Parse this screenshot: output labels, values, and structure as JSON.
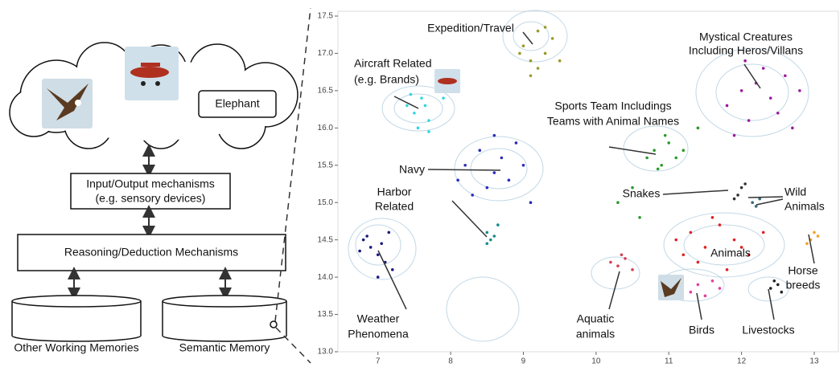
{
  "diagram": {
    "cloud_item": "Elephant",
    "io": [
      "Input/Output mechanisms",
      "(e.g. sensory devices)"
    ],
    "reasoning": "Reasoning/Deduction Mechanisms",
    "memories": [
      "Other Working Memories",
      "Semantic Memory"
    ]
  },
  "chart_data": {
    "type": "scatter",
    "xlim": [
      6.45,
      13.31
    ],
    "ylim": [
      13.0,
      17.5
    ],
    "xticks": [
      7,
      8,
      9,
      10,
      11,
      12,
      13
    ],
    "yticks": [
      {
        "value": 13,
        "label": "13.0"
      },
      13.5,
      {
        "value": 14,
        "label": "14.0"
      },
      14.5,
      {
        "value": 15,
        "label": "15.0"
      },
      15.5,
      {
        "value": 16,
        "label": "16.0"
      },
      16.5,
      {
        "value": 17,
        "label": "17.0"
      },
      17.5
    ],
    "series": [
      {
        "color": "#9a9a2a",
        "x": [
          9.0,
          9.1,
          9.2,
          9.3,
          9.1,
          9.4,
          9.2,
          9.5,
          8.95,
          9.3
        ],
        "y": [
          17.1,
          16.9,
          17.3,
          17.0,
          16.7,
          17.2,
          16.8,
          16.9,
          17.0,
          17.35
        ]
      },
      {
        "color": "#2fd8e0",
        "x": [
          7.4,
          7.5,
          7.6,
          7.7,
          7.8,
          7.55,
          7.65,
          7.9,
          7.45,
          7.7
        ],
        "y": [
          16.3,
          16.2,
          16.4,
          16.1,
          16.5,
          16.0,
          16.3,
          16.4,
          16.45,
          15.95
        ]
      },
      {
        "color": "#2a2ab8",
        "x": [
          8.2,
          8.4,
          8.6,
          8.7,
          8.8,
          9.0,
          8.5,
          8.3,
          8.9,
          8.6,
          8.1,
          9.1
        ],
        "y": [
          15.5,
          15.7,
          15.4,
          15.6,
          15.3,
          15.5,
          15.2,
          15.1,
          15.8,
          15.9,
          15.3,
          15.0
        ]
      },
      {
        "color": "#1a8a8a",
        "x": [
          8.5,
          8.55,
          8.6,
          8.5,
          8.65
        ],
        "y": [
          14.6,
          14.5,
          14.55,
          14.45,
          14.7
        ]
      },
      {
        "color": "#1a1a80",
        "x": [
          6.8,
          6.9,
          7.0,
          7.1,
          7.2,
          6.85,
          7.05,
          7.0,
          6.75,
          7.15
        ],
        "y": [
          14.5,
          14.4,
          14.3,
          14.2,
          14.1,
          14.55,
          14.45,
          14.0,
          14.35,
          14.6
        ]
      },
      {
        "color": "#2a9a2a",
        "x": [
          10.7,
          10.8,
          10.9,
          11.0,
          11.1,
          10.85,
          10.95,
          11.2,
          10.5,
          10.3,
          11.4,
          10.6
        ],
        "y": [
          15.6,
          15.7,
          15.5,
          15.8,
          15.6,
          15.45,
          15.9,
          15.7,
          15.2,
          15.0,
          16.0,
          14.8
        ]
      },
      {
        "color": "#9a1aa0",
        "x": [
          11.8,
          12.0,
          12.2,
          12.4,
          12.6,
          12.8,
          12.1,
          12.5,
          11.9,
          12.3,
          12.7,
          12.05
        ],
        "y": [
          16.3,
          16.5,
          16.6,
          16.4,
          16.7,
          16.5,
          16.1,
          16.2,
          15.9,
          16.8,
          16.0,
          16.9
        ]
      },
      {
        "color": "#333333",
        "x": [
          12.0,
          11.95,
          12.05,
          11.9
        ],
        "y": [
          15.2,
          15.1,
          15.25,
          15.05
        ]
      },
      {
        "color": "#3a6a7a",
        "x": [
          12.15,
          12.25,
          12.2
        ],
        "y": [
          15.0,
          15.05,
          14.95
        ]
      },
      {
        "color": "#e02020",
        "x": [
          11.1,
          11.3,
          11.5,
          11.7,
          11.9,
          12.1,
          12.3,
          11.4,
          11.6,
          11.8,
          12.0,
          11.2
        ],
        "y": [
          14.5,
          14.6,
          14.4,
          14.7,
          14.5,
          14.3,
          14.6,
          14.2,
          14.8,
          14.1,
          14.4,
          14.3
        ]
      },
      {
        "color": "#d04050",
        "x": [
          10.2,
          10.3,
          10.4,
          10.5,
          10.35
        ],
        "y": [
          14.2,
          14.15,
          14.25,
          14.1,
          14.3
        ]
      },
      {
        "color": "#e040a0",
        "x": [
          11.3,
          11.4,
          11.5,
          11.6,
          11.7
        ],
        "y": [
          13.8,
          13.9,
          13.75,
          13.95,
          13.85
        ]
      },
      {
        "color": "#222222",
        "x": [
          12.4,
          12.5,
          12.55,
          12.45
        ],
        "y": [
          13.85,
          13.9,
          13.8,
          13.95
        ]
      },
      {
        "color": "#f0a020",
        "x": [
          12.95,
          13.0,
          13.05,
          12.9
        ],
        "y": [
          14.5,
          14.6,
          14.55,
          14.45
        ]
      }
    ],
    "annotations": [
      {
        "text": [
          "Expedition/Travel"
        ]
      },
      {
        "text": [
          "Aircraft Related",
          "(e.g. Brands)"
        ]
      },
      {
        "text": [
          "Mystical Creatures",
          "Including Heros/Villans"
        ]
      },
      {
        "text": [
          "Sports Team Includings",
          "Teams with Animal Names"
        ]
      },
      {
        "text": [
          "Navy"
        ]
      },
      {
        "text": [
          "Harbor",
          "Related"
        ]
      },
      {
        "text": [
          "Snakes"
        ]
      },
      {
        "text": [
          "Wild",
          "Animals"
        ]
      },
      {
        "text": [
          "Animals"
        ]
      },
      {
        "text": [
          "Horse",
          "breeds"
        ]
      },
      {
        "text": [
          "Weather",
          "Phenomena"
        ]
      },
      {
        "text": [
          "Aquatic",
          "animals"
        ]
      },
      {
        "text": [
          "Birds"
        ]
      },
      {
        "text": [
          "Livestocks"
        ]
      }
    ]
  }
}
